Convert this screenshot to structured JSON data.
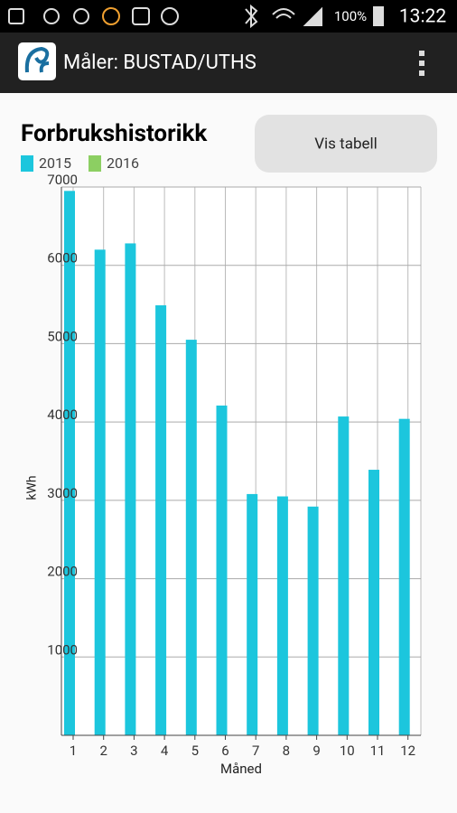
{
  "status_bar": {
    "battery": "100%",
    "time": "13:22"
  },
  "app_bar": {
    "title": "Måler: BUSTAD/UTHS"
  },
  "button": {
    "label": "Vis tabell"
  },
  "chart_data": {
    "type": "bar",
    "title": "Forbrukshistorikk",
    "x_label": "Måned",
    "y_label": "kWh",
    "categories": [
      "1",
      "2",
      "3",
      "4",
      "5",
      "6",
      "7",
      "8",
      "9",
      "10",
      "11",
      "12"
    ],
    "series": [
      {
        "name": "2015",
        "color": "#1cc6dd",
        "values": [
          6950,
          6200,
          6280,
          5490,
          5050,
          4210,
          3080,
          3050,
          2920,
          4070,
          3390,
          4040
        ]
      },
      {
        "name": "2016",
        "color": "#8ccf62",
        "values": [
          null,
          null,
          null,
          null,
          null,
          null,
          null,
          null,
          null,
          null,
          null,
          null
        ]
      }
    ],
    "ylim": [
      0,
      7000
    ],
    "yticks": [
      1000,
      2000,
      3000,
      4000,
      5000,
      6000,
      7000
    ],
    "grid": true
  }
}
